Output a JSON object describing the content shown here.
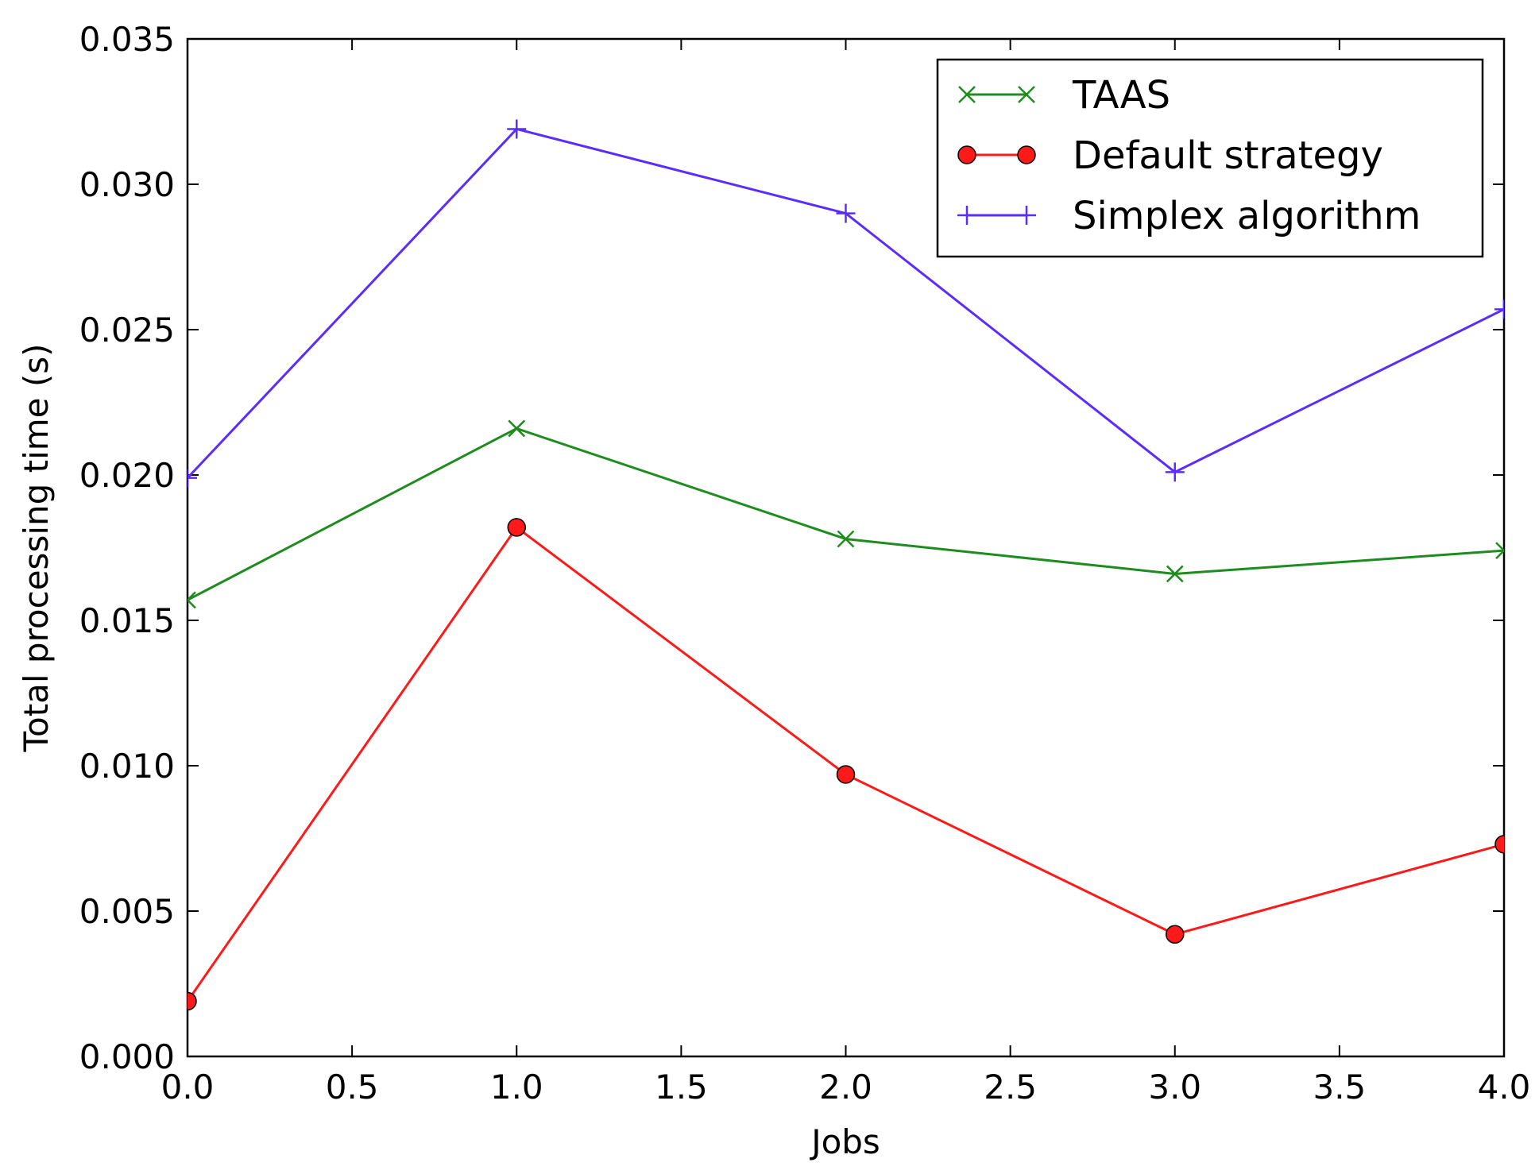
{
  "chart_data": {
    "type": "line",
    "title": "",
    "xlabel": "Jobs",
    "ylabel": "Total processing time (s)",
    "x": [
      0,
      1,
      2,
      3,
      4
    ],
    "xlim": [
      0,
      4
    ],
    "ylim": [
      0,
      0.035
    ],
    "xticks": [
      "0.0",
      "0.5",
      "1.0",
      "1.5",
      "2.0",
      "2.5",
      "3.0",
      "3.5",
      "4.0"
    ],
    "yticks": [
      "0.000",
      "0.005",
      "0.010",
      "0.015",
      "0.020",
      "0.025",
      "0.030",
      "0.035"
    ],
    "grid": false,
    "legend_position": "top-right",
    "series": [
      {
        "name": "TAAS",
        "marker": "x",
        "color": "#1e8c1e",
        "values": [
          0.0157,
          0.0216,
          0.0178,
          0.0166,
          0.0174
        ]
      },
      {
        "name": "Default strategy",
        "marker": "circle",
        "color": "#ff1a1a",
        "values": [
          0.0019,
          0.0182,
          0.0097,
          0.0042,
          0.0073
        ]
      },
      {
        "name": "Simplex algorithm",
        "marker": "plus",
        "color": "#5a2dff",
        "values": [
          0.0199,
          0.0319,
          0.029,
          0.0201,
          0.0257
        ]
      }
    ]
  }
}
